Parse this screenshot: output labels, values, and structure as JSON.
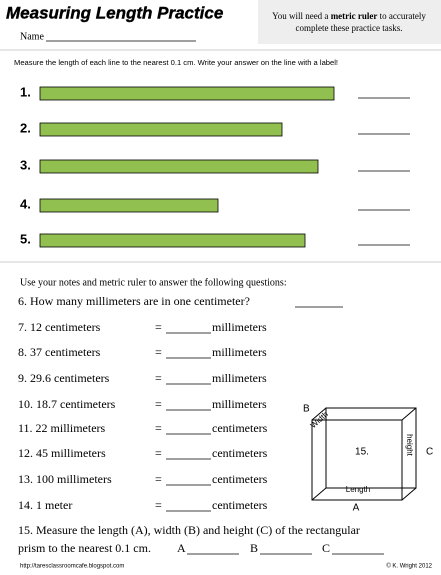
{
  "header": {
    "title": "Measuring Length Practice",
    "name_label": "Name",
    "note_before": "You will need a",
    "note_bold": "metric ruler",
    "note_after": "to accurately complete these practice tasks."
  },
  "part1": {
    "instructions": "Measure the length of each line to the nearest 0.1 cm.  Write your answer on the line with a label!",
    "items": [
      "1.",
      "2.",
      "3.",
      "4.",
      "5."
    ]
  },
  "part2": {
    "intro": "Use your notes and metric ruler to answer the following questions:",
    "q6": "6.  How many millimeters are in one centimeter?",
    "rows": [
      {
        "left": "7.  12 centimeters",
        "equals": "=",
        "unit": "millimeters"
      },
      {
        "left": "8.  37 centimeters",
        "equals": "=",
        "unit": "millimeters"
      },
      {
        "left": "9.  29.6 centimeters",
        "equals": "=",
        "unit": "millimeters"
      },
      {
        "left": "10.  18.7 centimeters",
        "equals": "=",
        "unit": "millimeters"
      },
      {
        "left": "11.  22 millimeters",
        "equals": "=",
        "unit": "centimeters"
      },
      {
        "left": "12.  45 millimeters",
        "equals": "=",
        "unit": "centimeters"
      },
      {
        "left": "13.  100 millimeters",
        "equals": "=",
        "unit": "centimeters"
      },
      {
        "left": "14.  1 meter",
        "equals": "=",
        "unit": "centimeters"
      }
    ],
    "q15_line1": "15.  Measure the length (A), width (B) and height (C) of the rectangular",
    "q15_line2": "prism to the nearest 0.1 cm.",
    "q15_answers": [
      "A",
      "B",
      "C"
    ]
  },
  "prism": {
    "b_letter": "B",
    "width": "Width",
    "number": "15.",
    "height": "height",
    "c_letter": "C",
    "length": "Length",
    "a_letter": "A"
  },
  "footer": {
    "url": "http://taresclassroomcafe.blogspot.com",
    "credit": "© K. Wright 2012"
  }
}
